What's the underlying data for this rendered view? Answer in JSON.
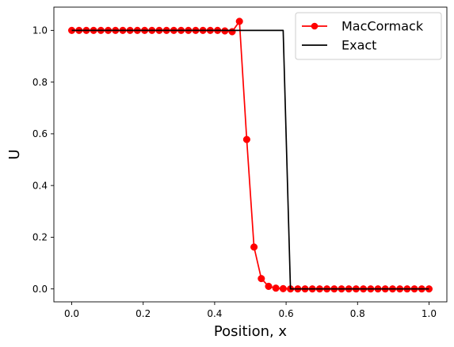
{
  "chart_data": {
    "type": "line",
    "title": "",
    "xlabel": "Position, x",
    "ylabel": "U",
    "xlim": [
      -0.05,
      1.05
    ],
    "ylim": [
      -0.05,
      1.09
    ],
    "x_ticks": [
      0.0,
      0.2,
      0.4,
      0.6,
      0.8,
      1.0
    ],
    "y_ticks": [
      0.0,
      0.2,
      0.4,
      0.6,
      0.8,
      1.0
    ],
    "x_tick_labels": [
      "0.0",
      "0.2",
      "0.4",
      "0.6",
      "0.8",
      "1.0"
    ],
    "y_tick_labels": [
      "0.0",
      "0.2",
      "0.4",
      "0.6",
      "0.8",
      "1.0"
    ],
    "grid": false,
    "legend_position": "top-right",
    "series": [
      {
        "name": "MacCormack",
        "color": "#ff0000",
        "marker": "circle",
        "x": [
          0.0,
          0.0204,
          0.0408,
          0.0612,
          0.0816,
          0.102,
          0.1224,
          0.1429,
          0.1633,
          0.1837,
          0.2041,
          0.2245,
          0.2449,
          0.2653,
          0.2857,
          0.3061,
          0.3265,
          0.3469,
          0.3673,
          0.3878,
          0.4082,
          0.4286,
          0.449,
          0.4694,
          0.4898,
          0.5102,
          0.5306,
          0.551,
          0.5714,
          0.5918,
          0.6122,
          0.6327,
          0.6531,
          0.6735,
          0.6939,
          0.7143,
          0.7347,
          0.7551,
          0.7755,
          0.7959,
          0.8163,
          0.8367,
          0.8571,
          0.8776,
          0.898,
          0.9184,
          0.9388,
          0.9592,
          0.9796,
          1.0
        ],
        "y": [
          1.0,
          1.0,
          1.0,
          1.0,
          1.0,
          1.0,
          1.0,
          1.0,
          1.0,
          1.0,
          1.0,
          1.0,
          1.0,
          1.0,
          1.0,
          1.0,
          1.0,
          1.0,
          1.0,
          1.0,
          1.0,
          0.998,
          0.995,
          1.035,
          0.578,
          0.162,
          0.04,
          0.01,
          0.003,
          0.001,
          0.0,
          0.0,
          0.0,
          0.0,
          0.0,
          0.0,
          0.0,
          0.0,
          0.0,
          0.0,
          0.0,
          0.0,
          0.0,
          0.0,
          0.0,
          0.0,
          0.0,
          0.0,
          0.0,
          0.0
        ]
      },
      {
        "name": "Exact",
        "color": "#000000",
        "marker": "none",
        "x": [
          0.0,
          0.5918,
          0.6122,
          1.0
        ],
        "y": [
          1.0,
          1.0,
          0.0,
          0.0
        ]
      }
    ]
  }
}
